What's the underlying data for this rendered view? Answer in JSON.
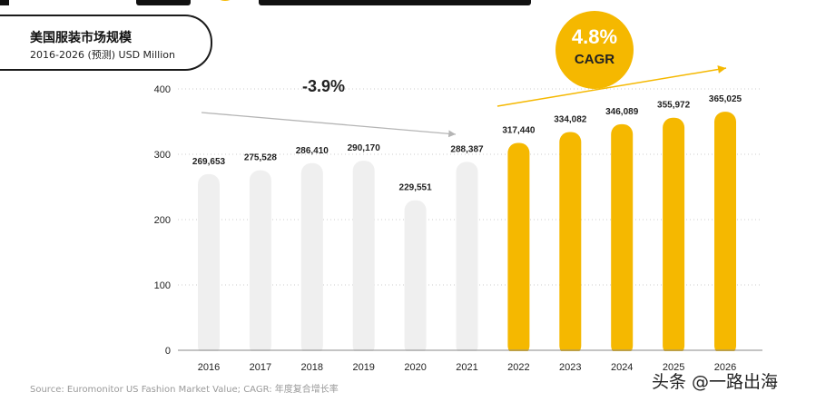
{
  "header": {
    "title": "美国服装市场规模",
    "subtitle": "2016-2026 (预测) USD Million"
  },
  "annotations": {
    "decline_rate": "-3.9%",
    "cagr_value": "4.8%",
    "cagr_label": "CAGR"
  },
  "footer": {
    "source": "Source:  Euromonitor US Fashion Market Value; CAGR: 年度复合增长率",
    "watermark": "头条 @一路出海"
  },
  "colors": {
    "historical_bar": "#efefef",
    "forecast_bar": "#f5b800",
    "grid": "#cccccc",
    "trend_arrow_historical": "#b5b5b5",
    "trend_arrow_forecast": "#f5b800"
  },
  "chart_data": {
    "type": "bar",
    "title": "美国服装市场规模",
    "subtitle": "2016-2026 (预测) USD Million",
    "categories": [
      "2016",
      "2017",
      "2018",
      "2019",
      "2020",
      "2021",
      "2022",
      "2023",
      "2024",
      "2025",
      "2026"
    ],
    "values": [
      269653,
      275528,
      286410,
      290170,
      229551,
      288387,
      317440,
      334082,
      346089,
      355972,
      365025
    ],
    "value_labels": [
      "269,653",
      "275,528",
      "286,410",
      "290,170",
      "229,551",
      "288,387",
      "317,440",
      "334,082",
      "346,089",
      "355,972",
      "365,025"
    ],
    "forecast_from": "2022",
    "ylim": [
      0,
      400
    ],
    "yticks": [
      "0",
      "100",
      "200",
      "300",
      "400"
    ],
    "grid": "horizontal dotted"
  }
}
